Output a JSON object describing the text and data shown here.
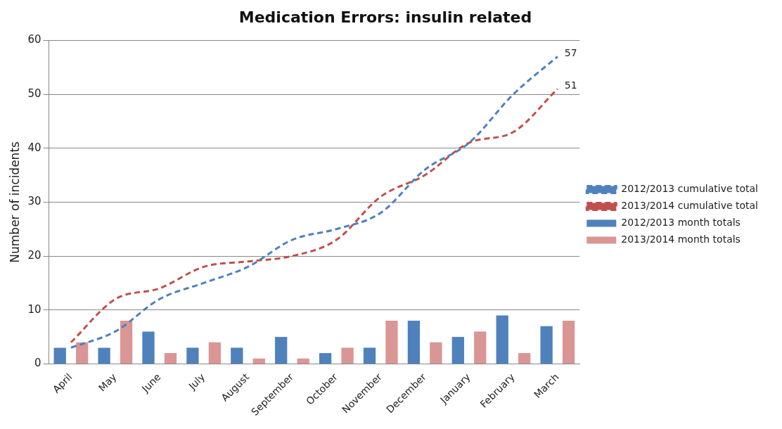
{
  "chart_data": {
    "type": "bar",
    "title": "Medication Errors: insulin related",
    "ylabel": "Number of incidents",
    "categories": [
      "April",
      "May",
      "June",
      "July",
      "August",
      "September",
      "October",
      "November",
      "December",
      "January",
      "February",
      "March"
    ],
    "series": [
      {
        "name": "2012/2013 month totals",
        "color": "#4f81bd",
        "values": [
          3,
          3,
          6,
          3,
          3,
          5,
          2,
          3,
          8,
          5,
          9,
          7
        ]
      },
      {
        "name": "2013/2014 month totals",
        "color": "#d99694",
        "values": [
          4,
          8,
          2,
          4,
          1,
          1,
          3,
          8,
          4,
          6,
          2,
          8
        ]
      },
      {
        "name": "2012/2013 cumulative total",
        "type": "line",
        "line_style": "dashed",
        "color": "#4f81bd",
        "values": [
          3,
          6,
          12,
          15,
          18,
          23,
          25,
          28,
          36,
          41,
          50,
          57
        ],
        "value_labels": [
          null,
          null,
          null,
          null,
          null,
          null,
          null,
          null,
          null,
          null,
          null,
          "57"
        ]
      },
      {
        "name": "2013/2014 cumulative total",
        "type": "line",
        "line_style": "dashed",
        "color": "#c0504d",
        "values": [
          4,
          12,
          14,
          18,
          19,
          20,
          23,
          31,
          35,
          41,
          43,
          51
        ],
        "value_labels": [
          null,
          null,
          null,
          null,
          null,
          null,
          null,
          null,
          null,
          null,
          null,
          "51"
        ]
      }
    ],
    "ylim": [
      0,
      60
    ],
    "yticks": [
      0,
      10,
      20,
      30,
      40,
      50,
      60
    ],
    "grid": "y",
    "legend": "right",
    "marker": "none"
  }
}
